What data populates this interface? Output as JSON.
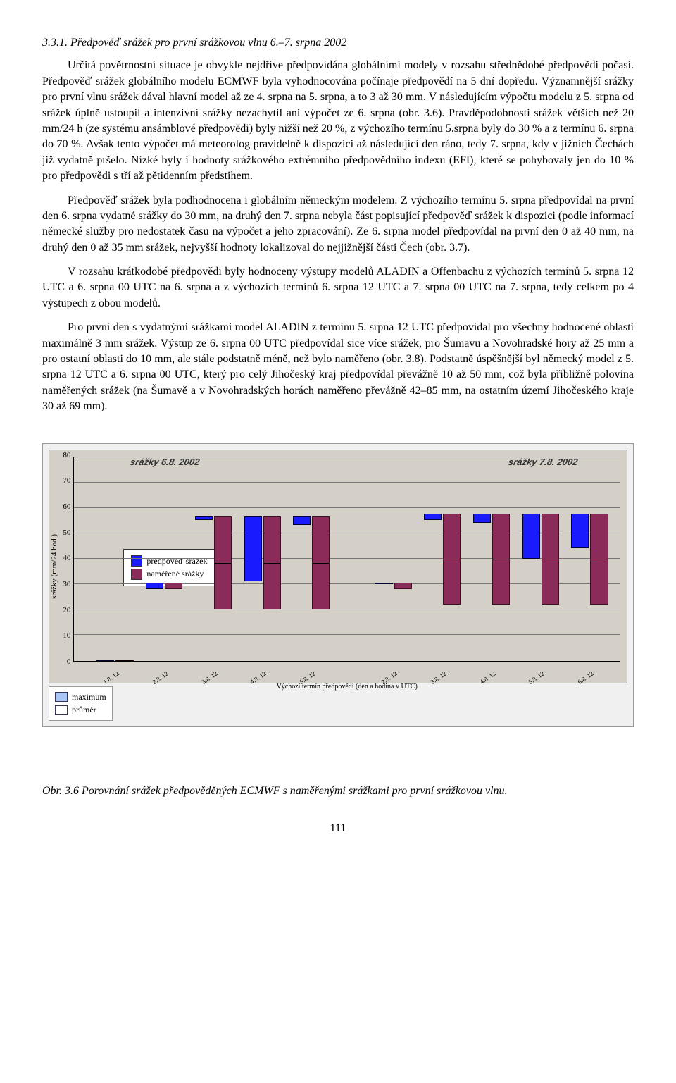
{
  "heading": "3.3.1.   Předpověď srážek pro první srážkovou vlnu 6.–7. srpna 2002",
  "paragraphs": [
    "Určitá povětrnostní situace je obvykle nejdříve předpovídána globálními modely v rozsahu střednědobé předpovědi počasí. Předpověď srážek globálního modelu ECMWF byla vyhodnocována počínaje předpovědí na 5 dní dopředu. Významnější srážky pro první vlnu srážek dával hlavní model až ze 4. srpna na 5. srpna, a to 3 až 30 mm. V následujícím výpočtu modelu z 5. srpna od srážek úplně ustoupil a intenzivní srážky nezachytil ani výpočet ze 6. srpna (obr. 3.6). Pravděpodobnosti srážek větších než 20 mm/24 h (ze systému ansámblové předpovědi) byly nižší než 20 %, z výchozího termínu 5.srpna byly do 30 % a z termínu 6. srpna do 70 %. Avšak tento výpočet má meteorolog pravidelně k dispozici až následující den ráno, tedy 7. srpna, kdy v jižních Čechách již vydatně pršelo. Nízké byly i hodnoty srážkového extrémního předpovědního indexu (EFI), které se pohybovaly jen do 10 % pro předpovědi s tří až pětidenním předstihem.",
    "Předpověď srážek byla podhodnocena i globálním německým modelem. Z výchozího termínu 5. srpna předpovídal na první den 6. srpna vydatné srážky do 30 mm, na druhý den 7. srpna nebyla část popisující předpověď srážek k dispozici (podle informací německé služby pro nedostatek času na výpočet a jeho zpracování). Ze 6. srpna model předpovídal na první den 0 až 40 mm, na druhý den 0 až 35 mm srážek, nejvyšší hodnoty lokalizoval do nejjižnější části Čech (obr. 3.7).",
    "V rozsahu krátkodobé předpovědi byly hodnoceny výstupy modelů ALADIN a Offenbachu z výchozích termínů 5. srpna 12 UTC a 6. srpna 00 UTC na 6. srpna a z výchozích termínů 6. srpna 12 UTC a 7. srpna 00 UTC na 7. srpna, tedy celkem po 4 výstupech z obou modelů.",
    "Pro první den s vydatnými srážkami model ALADIN z termínu 5. srpna 12 UTC předpovídal pro všechny hodnocené oblasti maximálně 3 mm srážek. Výstup ze 6. srpna 00 UTC předpovídal sice více srážek, pro Šumavu a Novohradské hory až 25 mm a pro ostatní oblasti do 10 mm, ale stále podstatně méně, než bylo naměřeno (obr. 3.8). Podstatně úspěšnější byl německý model z 5. srpna 12 UTC a 6. srpna 00 UTC, který pro celý Jihočeský kraj předpovídal převážně 10 až 50 mm, což byla přibližně polovina naměřených srážek (na Šumavě a v Novohradských horách naměřeno převážně 42–85 mm, na ostatním území Jihočeského kraje 30 až 69 mm)."
  ],
  "chart": {
    "y_axis_label": "srážky (mm/24 hod.)",
    "x_axis_title": "Výchozí termín předpovědi (den a hodina v UTC)",
    "y_ticks": [
      "80",
      "70",
      "60",
      "50",
      "40",
      "30",
      "20",
      "10",
      "0"
    ],
    "legend1": {
      "pred": "předpověď srážek",
      "meas": "naměřené srážky"
    },
    "legend2": {
      "max": "maximum",
      "avg": "průměr"
    },
    "group_titles": {
      "left": "srážky 6.8. 2002",
      "right": "srážky 7.8. 2002"
    },
    "series": [
      {
        "x": "1.8. 12",
        "left_pct": 4,
        "pred": 0,
        "meas": 0
      },
      {
        "x": "2.8. 12",
        "left_pct": 13,
        "pred": 2,
        "meas": 30,
        "meas_min": 28
      },
      {
        "x": "3.8. 12",
        "left_pct": 22,
        "pred": 1,
        "meas": 56,
        "meas_min": 20
      },
      {
        "x": "4.8. 12",
        "left_pct": 31,
        "pred": 25,
        "meas": 56,
        "meas_min": 20
      },
      {
        "x": "5.8. 12",
        "left_pct": 40,
        "pred": 3,
        "meas": 56,
        "meas_min": 20
      },
      {
        "x": "2.8. 12",
        "left_pct": 55,
        "pred": 0,
        "meas": 30,
        "meas_min": 28
      },
      {
        "x": "3.8. 12",
        "left_pct": 64,
        "pred": 2,
        "meas": 57,
        "meas_min": 22
      },
      {
        "x": "4.8. 12",
        "left_pct": 73,
        "pred": 3,
        "meas": 57,
        "meas_min": 22
      },
      {
        "x": "5.8. 12",
        "left_pct": 82,
        "pred": 17,
        "meas": 57,
        "meas_min": 22
      },
      {
        "x": "6.8. 12",
        "left_pct": 91,
        "pred": 13,
        "meas": 57,
        "meas_min": 22
      }
    ],
    "ymax": 80,
    "colors": {
      "pred": "#1a1aff",
      "meas": "#8b2b5a",
      "bg": "#d4d0c8",
      "grid": "#777777"
    }
  },
  "caption": "Obr. 3.6 Porovnání srážek předpověděných ECMWF s naměřenými srážkami pro první srážkovou vlnu.",
  "page_number": "111"
}
